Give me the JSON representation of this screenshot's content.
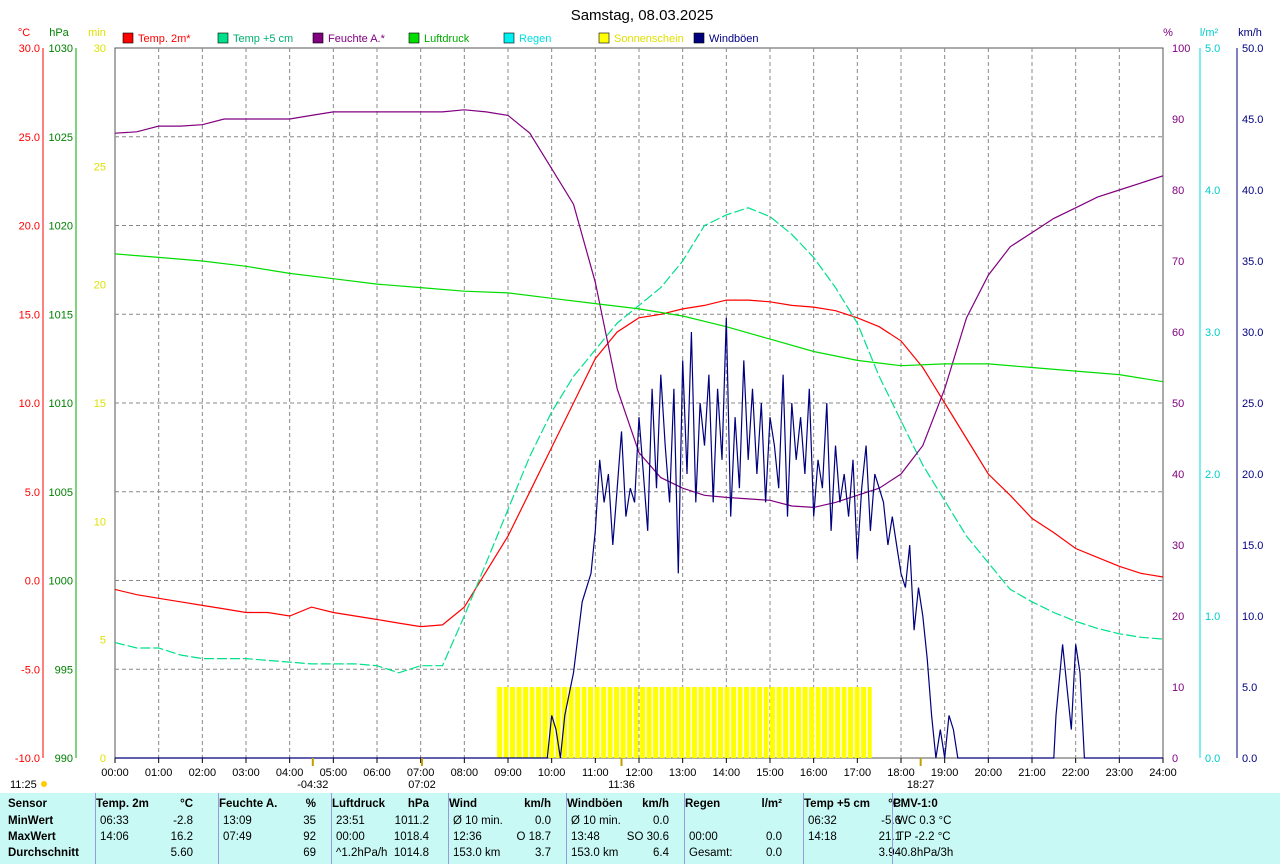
{
  "chart_data": {
    "type": "line",
    "title": "Samstag, 08.03.2025",
    "x_axis": {
      "tick_labels": [
        "00:00",
        "01:00",
        "02:00",
        "03:00",
        "04:00",
        "05:00",
        "06:00",
        "07:00",
        "08:00",
        "09:00",
        "10:00",
        "11:00",
        "12:00",
        "13:00",
        "14:00",
        "15:00",
        "16:00",
        "17:00",
        "18:00",
        "19:00",
        "20:00",
        "21:00",
        "22:00",
        "23:00",
        "24:00"
      ],
      "range_hours": [
        0,
        24
      ]
    },
    "y_axes": {
      "temp": {
        "unit": "°C",
        "range": [
          -10,
          30
        ],
        "ticks": [
          "30.0",
          "25.0",
          "20.0",
          "15.0",
          "10.0",
          "5.0",
          "0.0",
          "-5.0",
          "-10.0"
        ]
      },
      "pressure": {
        "unit": "hPa",
        "range": [
          990,
          1030
        ],
        "ticks": [
          "1030",
          "1025",
          "1020",
          "1015",
          "1010",
          "1005",
          "1000",
          "995",
          "990"
        ]
      },
      "sunshine": {
        "unit": "min",
        "range": [
          0,
          30
        ],
        "ticks": [
          "30",
          "25",
          "20",
          "15",
          "10",
          "5",
          "0"
        ]
      },
      "humidity": {
        "unit": "%",
        "range": [
          0,
          100
        ],
        "ticks": [
          "100",
          "90",
          "80",
          "70",
          "60",
          "50",
          "40",
          "30",
          "20",
          "10",
          "0"
        ]
      },
      "rain": {
        "unit": "l/m²",
        "range": [
          0,
          5
        ],
        "ticks": [
          "5.0",
          "4.0",
          "3.0",
          "2.0",
          "1.0",
          "0.0"
        ]
      },
      "wind": {
        "unit": "km/h",
        "range": [
          0,
          50
        ],
        "ticks": [
          "50.0",
          "45.0",
          "40.0",
          "35.0",
          "30.0",
          "25.0",
          "20.0",
          "15.0",
          "10.0",
          "5.0",
          "0.0"
        ]
      }
    },
    "grid": true,
    "legend_position": "top",
    "series": [
      {
        "name": "Temp. 2m*",
        "color": "#ff0000",
        "axis": "temp",
        "x": [
          0,
          0.5,
          1,
          1.5,
          2,
          2.5,
          3,
          3.5,
          4,
          4.5,
          5,
          5.5,
          6,
          6.5,
          7,
          7.5,
          8,
          8.5,
          9,
          9.5,
          10,
          10.5,
          11,
          11.5,
          12,
          12.5,
          13,
          13.5,
          14,
          14.5,
          15,
          15.5,
          16,
          16.5,
          17,
          17.5,
          18,
          18.5,
          19,
          19.5,
          20,
          20.5,
          21,
          21.5,
          22,
          22.5,
          23,
          23.5,
          24
        ],
        "y": [
          -0.5,
          -0.8,
          -1,
          -1.2,
          -1.4,
          -1.6,
          -1.8,
          -1.8,
          -2,
          -1.5,
          -1.8,
          -2,
          -2.2,
          -2.4,
          -2.6,
          -2.5,
          -1.5,
          0.5,
          2.5,
          5,
          7.5,
          10,
          12.5,
          14,
          14.8,
          15,
          15.3,
          15.5,
          15.8,
          15.8,
          15.7,
          15.5,
          15.4,
          15.2,
          14.8,
          14.3,
          13.5,
          12,
          10,
          8,
          6,
          4.8,
          3.5,
          2.7,
          1.8,
          1.3,
          0.8,
          0.4,
          0.2
        ]
      },
      {
        "name": "Temp +5 cm",
        "color": "#00e08a",
        "axis": "temp",
        "x": [
          0,
          0.5,
          1,
          1.5,
          2,
          2.5,
          3,
          3.5,
          4,
          4.5,
          5,
          5.5,
          6,
          6.5,
          7,
          7.5,
          8,
          8.5,
          9,
          9.5,
          10,
          10.5,
          11,
          11.5,
          12,
          12.5,
          13,
          13.5,
          14,
          14.5,
          15,
          15.5,
          16,
          16.5,
          17,
          17.5,
          18,
          18.5,
          19,
          19.5,
          20,
          20.5,
          21,
          21.5,
          22,
          22.5,
          23,
          23.5,
          24
        ],
        "y": [
          -3.5,
          -3.8,
          -3.8,
          -4.2,
          -4.4,
          -4.4,
          -4.4,
          -4.5,
          -4.6,
          -4.7,
          -4.7,
          -4.7,
          -4.8,
          -5.2,
          -4.8,
          -4.8,
          -2,
          1,
          4,
          7,
          9.5,
          11.5,
          13,
          14.5,
          15.5,
          16.5,
          18,
          20,
          20.6,
          21,
          20.5,
          19.5,
          18.2,
          16.5,
          14.5,
          11.5,
          9,
          6.5,
          4.5,
          2.5,
          1,
          -0.5,
          -1.2,
          -1.8,
          -2.3,
          -2.7,
          -3,
          -3.2,
          -3.3
        ]
      },
      {
        "name": "Feuchte A.*",
        "color": "#800080",
        "axis": "humidity",
        "x": [
          0,
          0.5,
          1,
          1.5,
          2,
          2.5,
          3,
          3.5,
          4,
          4.5,
          5,
          5.5,
          6,
          6.5,
          7,
          7.5,
          8,
          8.5,
          9,
          9.5,
          10,
          10.5,
          11,
          11.5,
          12,
          12.5,
          13,
          13.5,
          14,
          14.5,
          15,
          15.5,
          16,
          16.5,
          17,
          17.5,
          18,
          18.5,
          19,
          19.5,
          20,
          20.5,
          21,
          21.5,
          22,
          22.5,
          23,
          23.5,
          24
        ],
        "y": [
          88,
          88.2,
          89,
          89,
          89.2,
          90,
          90,
          90,
          90,
          90.5,
          91,
          91,
          91,
          91,
          91,
          91,
          91.3,
          91,
          90.5,
          88,
          83,
          78,
          67,
          52,
          43,
          39.5,
          38,
          37,
          36.7,
          36.5,
          36.3,
          35.5,
          35.3,
          36,
          37,
          38,
          40,
          44,
          52,
          62,
          68,
          72,
          74,
          76,
          77.5,
          79,
          80,
          81,
          82
        ]
      },
      {
        "name": "Luftdruck",
        "color": "#00dd00",
        "axis": "pressure",
        "x": [
          0,
          1,
          2,
          3,
          4,
          5,
          6,
          7,
          8,
          9,
          10,
          11,
          12,
          13,
          14,
          15,
          16,
          17,
          18,
          19,
          20,
          21,
          22,
          23,
          24
        ],
        "y": [
          1018.4,
          1018.2,
          1018,
          1017.7,
          1017.3,
          1017,
          1016.7,
          1016.5,
          1016.3,
          1016.2,
          1015.9,
          1015.6,
          1015.3,
          1014.9,
          1014.3,
          1013.6,
          1012.9,
          1012.4,
          1012.1,
          1012.2,
          1012.2,
          1012,
          1011.8,
          1011.6,
          1011.2
        ]
      },
      {
        "name": "Regen",
        "color": "#00f0f0",
        "axis": "rain",
        "x": [],
        "y": []
      },
      {
        "name": "Sonnenschein",
        "color": "#ffff00",
        "axis": "sunshine",
        "x": [
          8.75,
          17.33
        ],
        "y": [
          3,
          3
        ]
      },
      {
        "name": "Windböen",
        "color": "#00007f",
        "axis": "wind",
        "x": [
          0,
          9.9,
          10,
          10.1,
          10.2,
          10.3,
          10.5,
          10.7,
          10.9,
          11.0,
          11.1,
          11.2,
          11.3,
          11.4,
          11.5,
          11.6,
          11.7,
          11.8,
          11.9,
          12.0,
          12.1,
          12.2,
          12.3,
          12.4,
          12.5,
          12.6,
          12.7,
          12.8,
          12.9,
          13.0,
          13.1,
          13.2,
          13.3,
          13.4,
          13.5,
          13.6,
          13.7,
          13.8,
          13.9,
          14.0,
          14.1,
          14.2,
          14.3,
          14.4,
          14.5,
          14.6,
          14.7,
          14.8,
          14.9,
          15.0,
          15.1,
          15.2,
          15.3,
          15.4,
          15.5,
          15.6,
          15.7,
          15.8,
          15.9,
          16.0,
          16.1,
          16.2,
          16.3,
          16.4,
          16.5,
          16.6,
          16.7,
          16.8,
          16.9,
          17.0,
          17.1,
          17.2,
          17.3,
          17.4,
          17.5,
          17.6,
          17.7,
          17.8,
          17.9,
          18.0,
          18.1,
          18.2,
          18.3,
          18.4,
          18.5,
          18.6,
          18.7,
          18.8,
          18.9,
          19.0,
          19.1,
          19.2,
          19.3,
          19.4,
          21.5,
          21.55,
          21.7,
          21.9,
          22.0,
          22.1,
          22.2,
          24
        ],
        "y": [
          0,
          0,
          3,
          2,
          0,
          3,
          6,
          11,
          13,
          16,
          21,
          18,
          20,
          15,
          19,
          23,
          17,
          19,
          18,
          24,
          20,
          16,
          26,
          19,
          27,
          22,
          18,
          26,
          13,
          28,
          20,
          30,
          18,
          25,
          22,
          27,
          18,
          26,
          21,
          31,
          17,
          24,
          19,
          28,
          21,
          26,
          20,
          25,
          18,
          24,
          22,
          19,
          27,
          17,
          25,
          21,
          24,
          20,
          26,
          17,
          21,
          19,
          25,
          16,
          22,
          18,
          20,
          17,
          21,
          14,
          19,
          22,
          16,
          20,
          19,
          18,
          15,
          17,
          15,
          13,
          12,
          15,
          9,
          12,
          10,
          7,
          3,
          0,
          2,
          0,
          3,
          2,
          0,
          0,
          0,
          3,
          8,
          2,
          8,
          6,
          0,
          0
        ]
      }
    ],
    "sun_markers": [
      {
        "label": "-04:32",
        "hour": 4.53
      },
      {
        "label": "07:02",
        "hour": 7.03
      },
      {
        "label": "11:36",
        "hour": 11.6
      },
      {
        "label": "18:27",
        "hour": 18.45
      }
    ],
    "corner_label": "11:25"
  },
  "stats_table": {
    "columns": [
      {
        "title": "Sensor",
        "rows": [
          "MinWert",
          "MaxWert",
          "Durchschnitt"
        ]
      },
      {
        "title": "Temp. 2m",
        "unit": "°C",
        "rows": [
          [
            "06:33",
            "-2.8"
          ],
          [
            "14:06",
            "16.2"
          ],
          [
            "",
            "5.60"
          ]
        ]
      },
      {
        "title": "Feuchte A.",
        "unit": "%",
        "rows": [
          [
            "13:09",
            "35"
          ],
          [
            "07:49",
            "92"
          ],
          [
            "",
            "69"
          ]
        ]
      },
      {
        "title": "Luftdruck",
        "unit": "hPa",
        "rows": [
          [
            "23:51",
            "1011.2"
          ],
          [
            "00:00",
            "1018.4"
          ],
          [
            "^1.2hPa/h",
            "1014.8"
          ]
        ]
      },
      {
        "title": "Wind",
        "unit": "km/h",
        "rows": [
          [
            "Ø 10 min.",
            "0.0"
          ],
          [
            "12:36",
            "O 18.7"
          ],
          [
            "153.0 km",
            "3.7"
          ]
        ]
      },
      {
        "title": "Windböen",
        "unit": "km/h",
        "rows": [
          [
            "Ø 10 min.",
            "0.0"
          ],
          [
            "13:48",
            "SO 30.6"
          ],
          [
            "153.0 km",
            "6.4"
          ]
        ]
      },
      {
        "title": "Regen",
        "unit": "l/m²",
        "rows": [
          [
            "",
            ""
          ],
          [
            "00:00",
            "0.0"
          ],
          [
            "Gesamt:",
            "0.0"
          ]
        ]
      },
      {
        "title": "Temp +5 cm",
        "unit": "°C",
        "rows": [
          [
            "06:32",
            "-5.6"
          ],
          [
            "14:18",
            "21.1"
          ],
          [
            "",
            "3.94"
          ]
        ]
      },
      {
        "title": "PMV-1:0",
        "unit": "",
        "rows": [
          "WC 0.3 °C",
          "TP -2.2 °C",
          "-0.8hPa/3h"
        ]
      }
    ]
  }
}
